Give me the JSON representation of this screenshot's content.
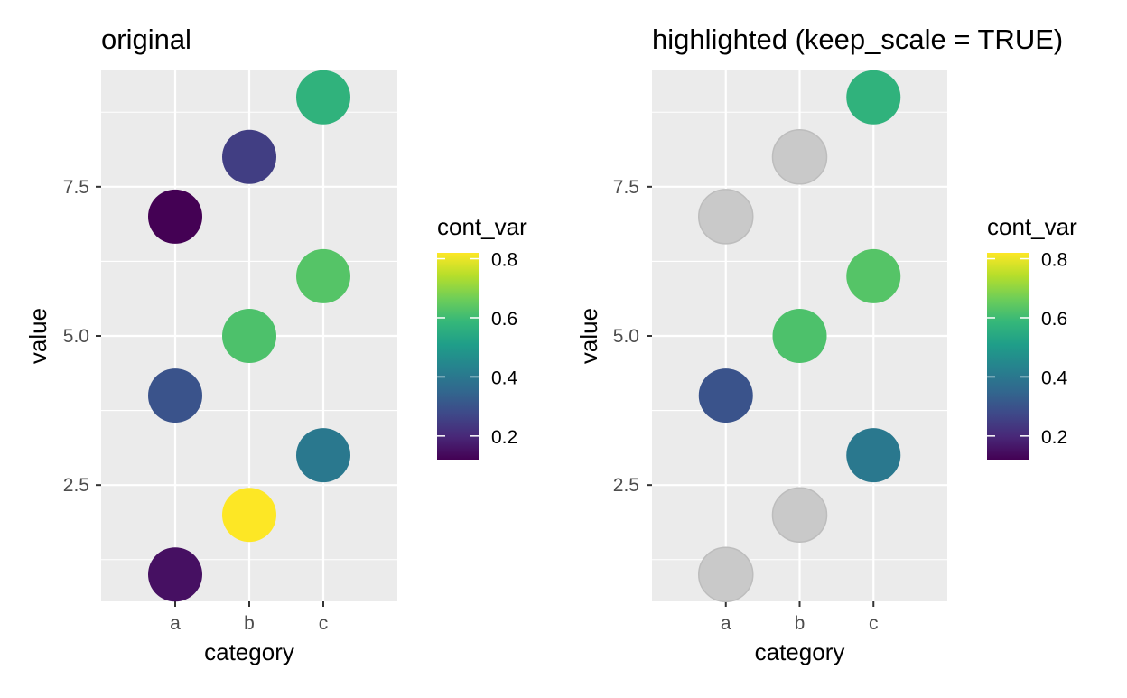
{
  "chart_data": [
    {
      "type": "scatter",
      "title": "original",
      "xlabel": "category",
      "ylabel": "value",
      "categories": [
        "a",
        "b",
        "c"
      ],
      "y_ticks": [
        2.5,
        5.0,
        7.5
      ],
      "y_tick_labels": [
        "2.5",
        "5.0",
        "7.5"
      ],
      "ylim": [
        0.55,
        9.45
      ],
      "grid": true,
      "points": [
        {
          "x": "a",
          "y": 1,
          "cont_var": 0.15,
          "highlighted": true
        },
        {
          "x": "a",
          "y": 4,
          "cont_var": 0.3,
          "highlighted": true
        },
        {
          "x": "a",
          "y": 7,
          "cont_var": 0.12,
          "highlighted": true
        },
        {
          "x": "b",
          "y": 2,
          "cont_var": 0.82,
          "highlighted": true
        },
        {
          "x": "b",
          "y": 5,
          "cont_var": 0.62,
          "highlighted": true
        },
        {
          "x": "b",
          "y": 8,
          "cont_var": 0.25,
          "highlighted": true
        },
        {
          "x": "c",
          "y": 3,
          "cont_var": 0.4,
          "highlighted": true
        },
        {
          "x": "c",
          "y": 6,
          "cont_var": 0.63,
          "highlighted": true
        },
        {
          "x": "c",
          "y": 9,
          "cont_var": 0.57,
          "highlighted": true
        }
      ],
      "legend": {
        "title": "cont_var",
        "position": "right",
        "range": [
          0.12,
          0.82
        ],
        "ticks": [
          0.2,
          0.4,
          0.6,
          0.8
        ],
        "tick_labels": [
          "0.2",
          "0.4",
          "0.6",
          "0.8"
        ]
      }
    },
    {
      "type": "scatter",
      "title": "highlighted (keep_scale = TRUE)",
      "xlabel": "category",
      "ylabel": "value",
      "categories": [
        "a",
        "b",
        "c"
      ],
      "y_ticks": [
        2.5,
        5.0,
        7.5
      ],
      "y_tick_labels": [
        "2.5",
        "5.0",
        "7.5"
      ],
      "ylim": [
        0.55,
        9.45
      ],
      "grid": true,
      "unhighlighted_color": "#c9c9c9",
      "points": [
        {
          "x": "a",
          "y": 1,
          "cont_var": 0.15,
          "highlighted": false
        },
        {
          "x": "a",
          "y": 4,
          "cont_var": 0.3,
          "highlighted": true
        },
        {
          "x": "a",
          "y": 7,
          "cont_var": 0.12,
          "highlighted": false
        },
        {
          "x": "b",
          "y": 2,
          "cont_var": 0.82,
          "highlighted": false
        },
        {
          "x": "b",
          "y": 5,
          "cont_var": 0.62,
          "highlighted": true
        },
        {
          "x": "b",
          "y": 8,
          "cont_var": 0.25,
          "highlighted": false
        },
        {
          "x": "c",
          "y": 3,
          "cont_var": 0.4,
          "highlighted": true
        },
        {
          "x": "c",
          "y": 6,
          "cont_var": 0.63,
          "highlighted": true
        },
        {
          "x": "c",
          "y": 9,
          "cont_var": 0.57,
          "highlighted": true
        }
      ],
      "legend": {
        "title": "cont_var",
        "position": "right",
        "range": [
          0.12,
          0.82
        ],
        "ticks": [
          0.2,
          0.4,
          0.6,
          0.8
        ],
        "tick_labels": [
          "0.2",
          "0.4",
          "0.6",
          "0.8"
        ]
      }
    }
  ],
  "colors": {
    "panel_background": "#ebebeb",
    "grid_line": "#ffffff",
    "tick_text": "#4d4d4d",
    "tick_mark": "#333333",
    "viridis": [
      "#440154",
      "#482878",
      "#3e4989",
      "#31688e",
      "#26828e",
      "#1f9e89",
      "#35b779",
      "#6ece58",
      "#b5de2b",
      "#fde725"
    ]
  }
}
